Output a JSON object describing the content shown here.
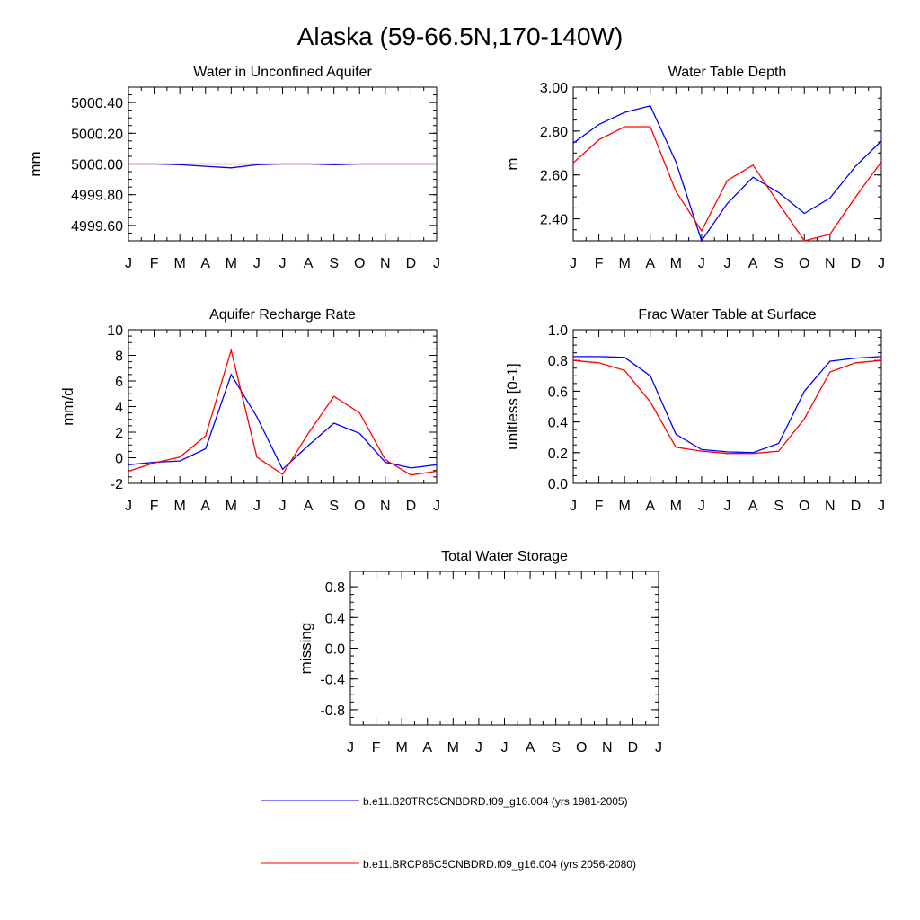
{
  "title": "Alaska (59-66.5N,170-140W)",
  "month_labels": [
    "J",
    "F",
    "M",
    "A",
    "M",
    "J",
    "J",
    "A",
    "S",
    "O",
    "N",
    "D",
    "J"
  ],
  "colors": {
    "series_1": "#0000ff",
    "series_2": "#ff0000",
    "axis": "#000000"
  },
  "legend": [
    {
      "label": "b.e11.B20TRC5CNBDRD.f09_g16.004 (yrs 1981-2005)",
      "color": "#0000ff"
    },
    {
      "label": "b.e11.BRCP85C5CNBDRD.f09_g16.004 (yrs 2056-2080)",
      "color": "#ff0000"
    }
  ],
  "chart_data": [
    {
      "type": "line",
      "title": "Water in Unconfined Aquifer",
      "ylabel": "mm",
      "ylim": [
        4999.5,
        5000.5
      ],
      "yticks": [
        4999.6,
        4999.8,
        5000.0,
        5000.2,
        5000.4
      ],
      "ytick_labels": [
        "4999.60",
        "4999.80",
        "5000.00",
        "5000.20",
        "5000.40"
      ],
      "x": [
        0,
        1,
        2,
        3,
        4,
        5,
        6,
        7,
        8,
        9,
        10,
        11,
        12
      ],
      "series": [
        {
          "name": "b.e11.B20TRC5CNBDRD.f09_g16.004 (yrs 1981-2005)",
          "values": [
            5000.0,
            5000.0,
            4999.995,
            4999.985,
            4999.975,
            4999.995,
            5000.0,
            5000.0,
            4999.995,
            5000.0,
            5000.0,
            5000.0,
            5000.0
          ]
        },
        {
          "name": "b.e11.BRCP85C5CNBDRD.f09_g16.004 (yrs 2056-2080)",
          "values": [
            5000.0,
            5000.0,
            5000.0,
            5000.0,
            5000.0,
            5000.0,
            5000.0,
            5000.0,
            5000.0,
            5000.0,
            5000.0,
            5000.0,
            5000.0
          ]
        }
      ]
    },
    {
      "type": "line",
      "title": "Water Table Depth",
      "ylabel": "m",
      "ylim": [
        2.3,
        3.0
      ],
      "yticks": [
        2.4,
        2.6,
        2.8,
        3.0
      ],
      "ytick_labels": [
        "2.40",
        "2.60",
        "2.80",
        "3.00"
      ],
      "x": [
        0,
        1,
        2,
        3,
        4,
        5,
        6,
        7,
        8,
        9,
        10,
        11,
        12
      ],
      "series": [
        {
          "name": "b.e11.B20TRC5CNBDRD.f09_g16.004 (yrs 1981-2005)",
          "values": [
            2.745,
            2.83,
            2.885,
            2.915,
            2.66,
            2.3,
            2.47,
            2.59,
            2.52,
            2.425,
            2.495,
            2.64,
            2.755
          ]
        },
        {
          "name": "b.e11.BRCP85C5CNBDRD.f09_g16.004 (yrs 2056-2080)",
          "values": [
            2.655,
            2.76,
            2.82,
            2.82,
            2.525,
            2.345,
            2.575,
            2.645,
            2.47,
            2.3,
            2.33,
            2.5,
            2.66
          ]
        }
      ]
    },
    {
      "type": "line",
      "title": "Aquifer Recharge Rate",
      "ylabel": "mm/d",
      "ylim": [
        -2,
        10
      ],
      "yticks": [
        -2,
        0,
        2,
        4,
        6,
        8,
        10
      ],
      "ytick_labels": [
        "-2",
        "0",
        "2",
        "4",
        "6",
        "8",
        "10"
      ],
      "x": [
        0,
        1,
        2,
        3,
        4,
        5,
        6,
        7,
        8,
        9,
        10,
        11,
        12
      ],
      "series": [
        {
          "name": "b.e11.B20TRC5CNBDRD.f09_g16.004 (yrs 1981-2005)",
          "values": [
            -0.55,
            -0.35,
            -0.25,
            0.7,
            6.5,
            3.2,
            -0.9,
            0.95,
            2.7,
            1.9,
            -0.35,
            -0.8,
            -0.55
          ]
        },
        {
          "name": "b.e11.BRCP85C5CNBDRD.f09_g16.004 (yrs 2056-2080)",
          "values": [
            -1.05,
            -0.4,
            0.05,
            1.7,
            8.4,
            0.05,
            -1.3,
            1.9,
            4.8,
            3.5,
            -0.15,
            -1.35,
            -1.05
          ]
        }
      ]
    },
    {
      "type": "line",
      "title": "Frac Water Table at Surface",
      "ylabel": "unitless [0-1]",
      "ylim": [
        0.0,
        1.0
      ],
      "yticks": [
        0.0,
        0.2,
        0.4,
        0.6,
        0.8,
        1.0
      ],
      "ytick_labels": [
        "0.0",
        "0.2",
        "0.4",
        "0.6",
        "0.8",
        "1.0"
      ],
      "x": [
        0,
        1,
        2,
        3,
        4,
        5,
        6,
        7,
        8,
        9,
        10,
        11,
        12
      ],
      "series": [
        {
          "name": "b.e11.B20TRC5CNBDRD.f09_g16.004 (yrs 1981-2005)",
          "values": [
            0.825,
            0.825,
            0.82,
            0.7,
            0.32,
            0.22,
            0.205,
            0.2,
            0.26,
            0.6,
            0.795,
            0.815,
            0.825
          ]
        },
        {
          "name": "b.e11.BRCP85C5CNBDRD.f09_g16.004 (yrs 2056-2080)",
          "values": [
            0.8,
            0.785,
            0.735,
            0.53,
            0.235,
            0.21,
            0.195,
            0.195,
            0.21,
            0.42,
            0.725,
            0.785,
            0.8
          ]
        }
      ]
    },
    {
      "type": "line",
      "title": "Total Water Storage",
      "ylabel": "missing",
      "ylim": [
        -1.0,
        1.0
      ],
      "yticks": [
        -0.8,
        -0.4,
        0.0,
        0.4,
        0.8
      ],
      "ytick_labels": [
        "-0.8",
        "-0.4",
        "0.0",
        "0.4",
        "0.8"
      ],
      "x": [
        0,
        1,
        2,
        3,
        4,
        5,
        6,
        7,
        8,
        9,
        10,
        11,
        12
      ],
      "series": []
    }
  ]
}
